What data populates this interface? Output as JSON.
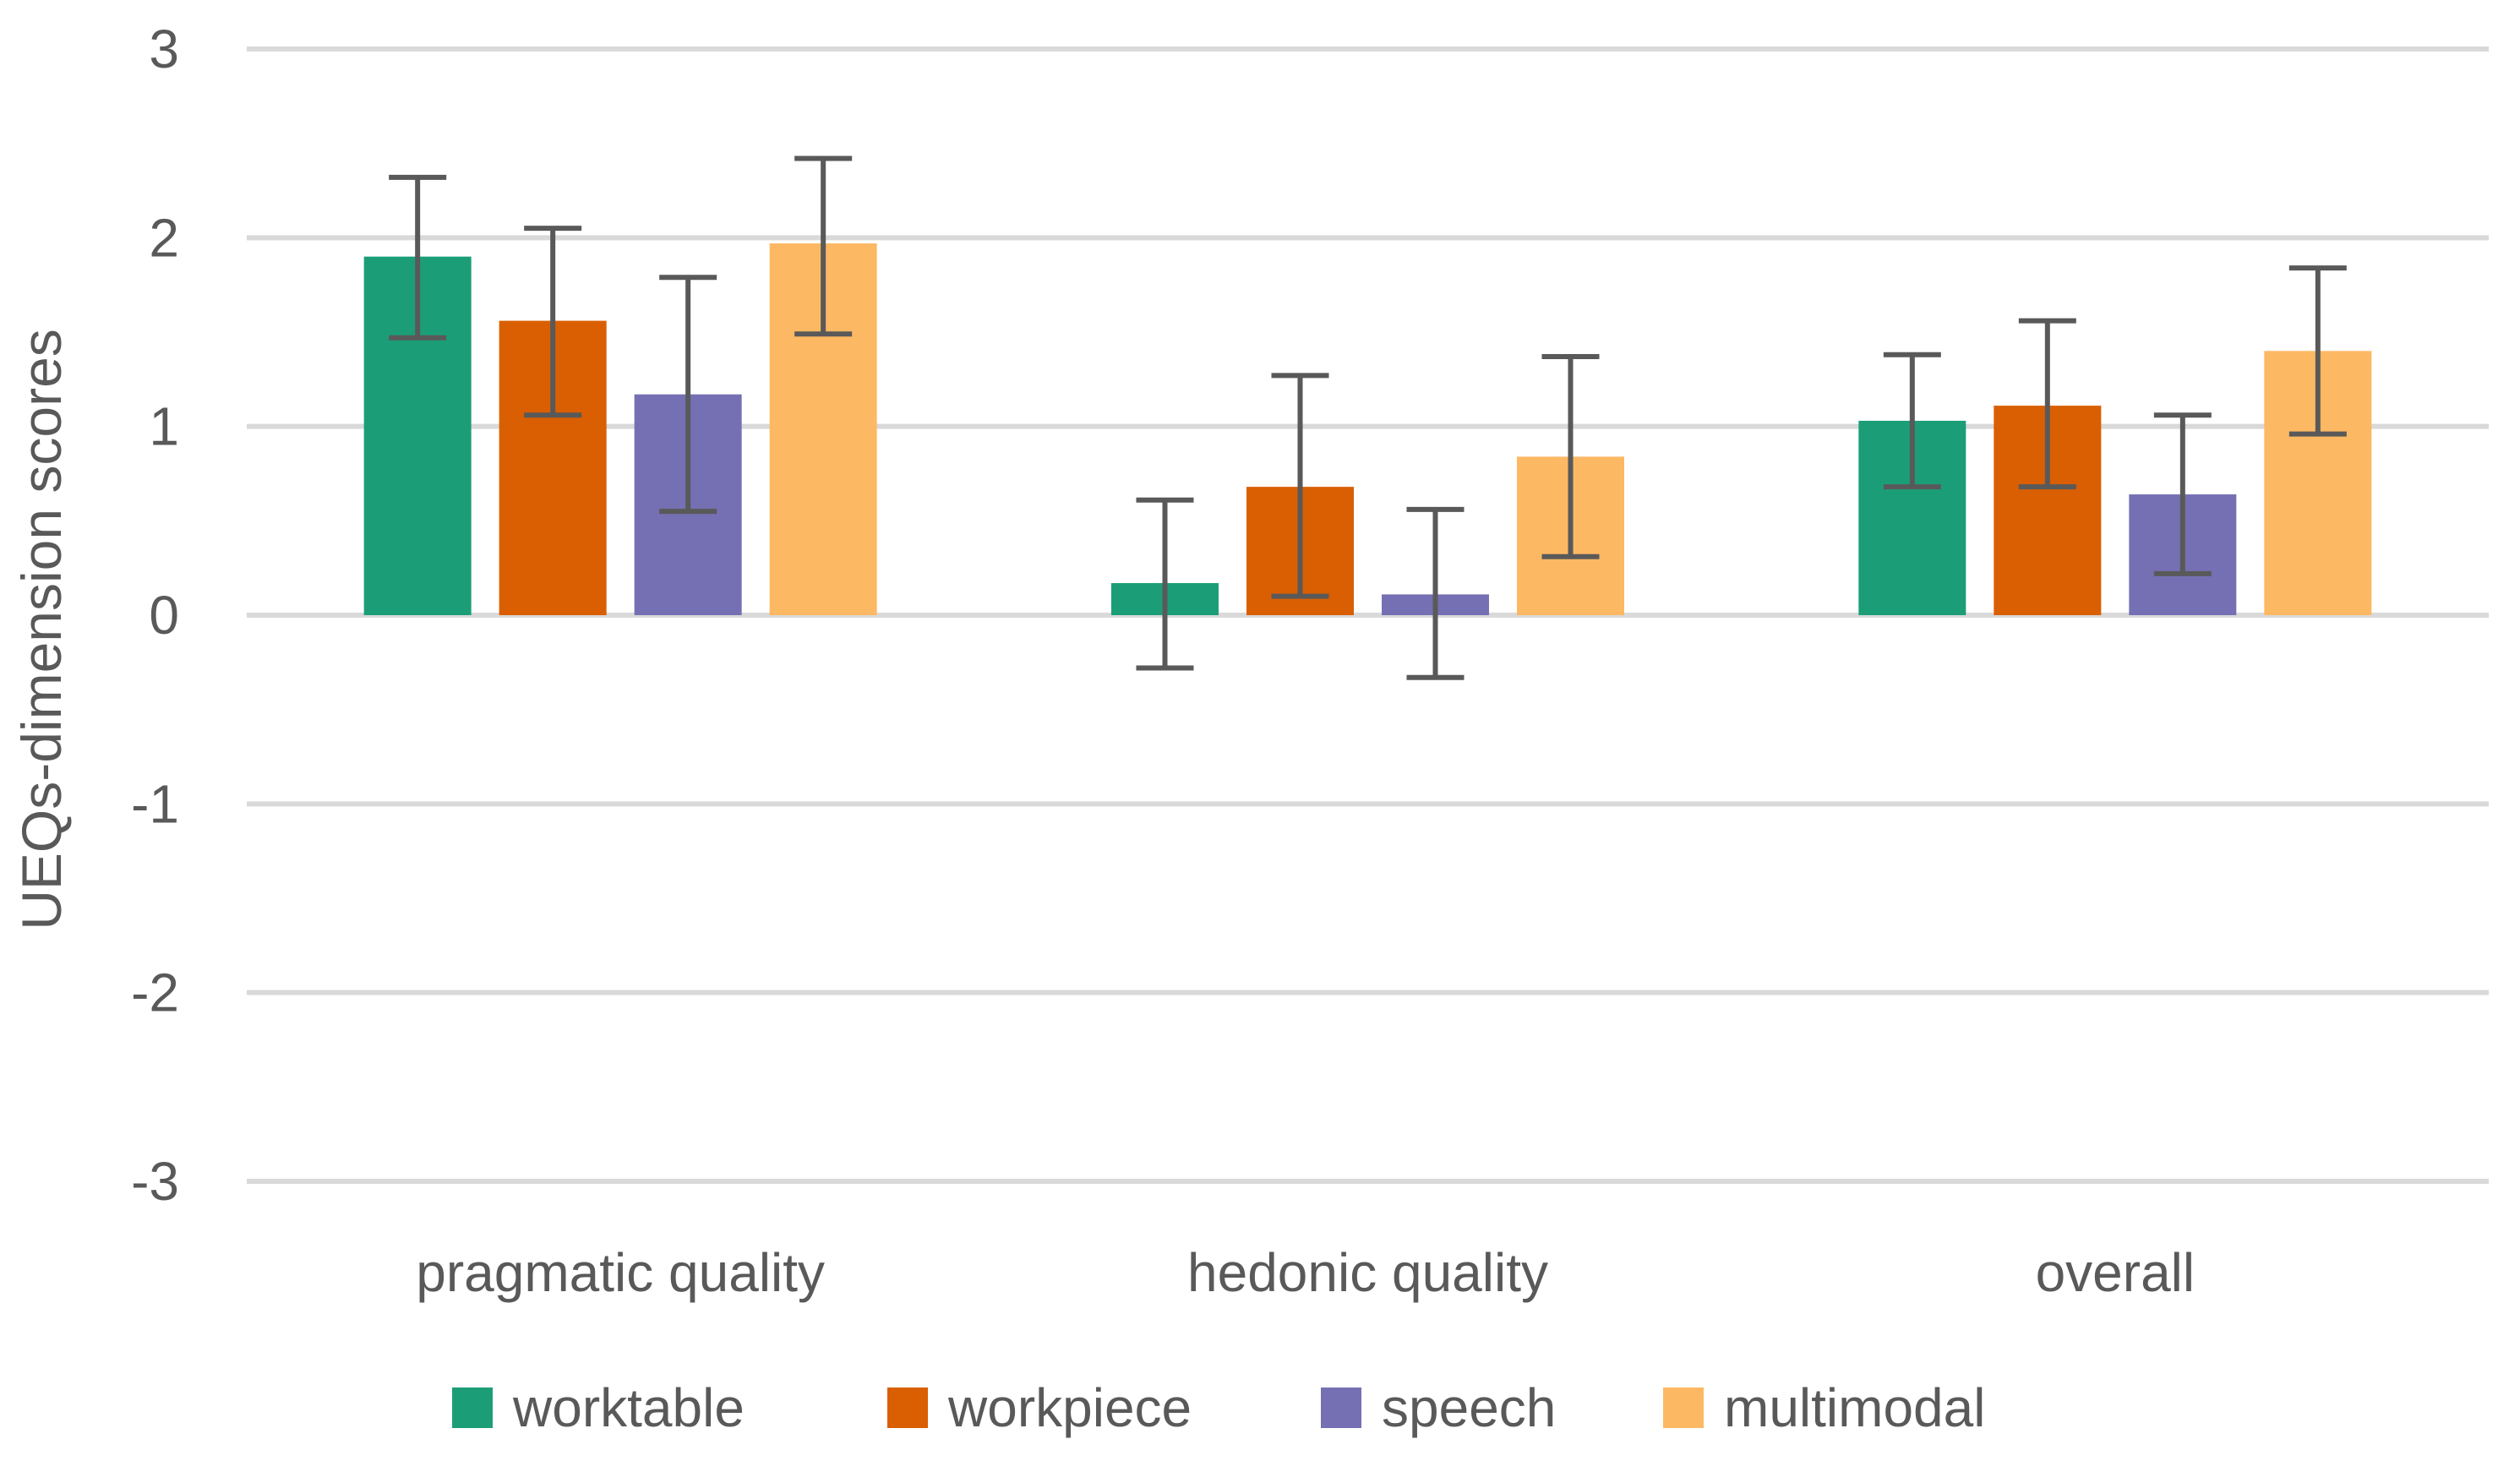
{
  "chart_data": {
    "type": "bar",
    "title": "",
    "xlabel": "",
    "ylabel": "UEQs-dimension scores",
    "ylim": [
      -3,
      3
    ],
    "yticks": [
      3,
      2,
      1,
      0,
      -1,
      -2,
      -3
    ],
    "grid": true,
    "legend_position": "bottom",
    "categories": [
      "pragmatic quality",
      "hedonic quality",
      "overall"
    ],
    "series": [
      {
        "name": "worktable",
        "color": "#1b9e77",
        "values": [
          1.9,
          0.17,
          1.03
        ],
        "error_low": [
          1.47,
          -0.28,
          0.68
        ],
        "error_high": [
          2.32,
          0.61,
          1.38
        ]
      },
      {
        "name": "workpiece",
        "color": "#d95f02",
        "values": [
          1.56,
          0.68,
          1.11
        ],
        "error_low": [
          1.06,
          0.1,
          0.68
        ],
        "error_high": [
          2.05,
          1.27,
          1.56
        ]
      },
      {
        "name": "speech",
        "color": "#7570b3",
        "values": [
          1.17,
          0.11,
          0.64
        ],
        "error_low": [
          0.55,
          -0.33,
          0.22
        ],
        "error_high": [
          1.79,
          0.56,
          1.06
        ]
      },
      {
        "name": "multimodal",
        "color": "#fdb863",
        "values": [
          1.97,
          0.84,
          1.4
        ],
        "error_low": [
          1.49,
          0.31,
          0.96
        ],
        "error_high": [
          2.42,
          1.37,
          1.84
        ]
      }
    ],
    "gridline_color": "#d9d9d9",
    "errorbar_color": "#595959"
  }
}
